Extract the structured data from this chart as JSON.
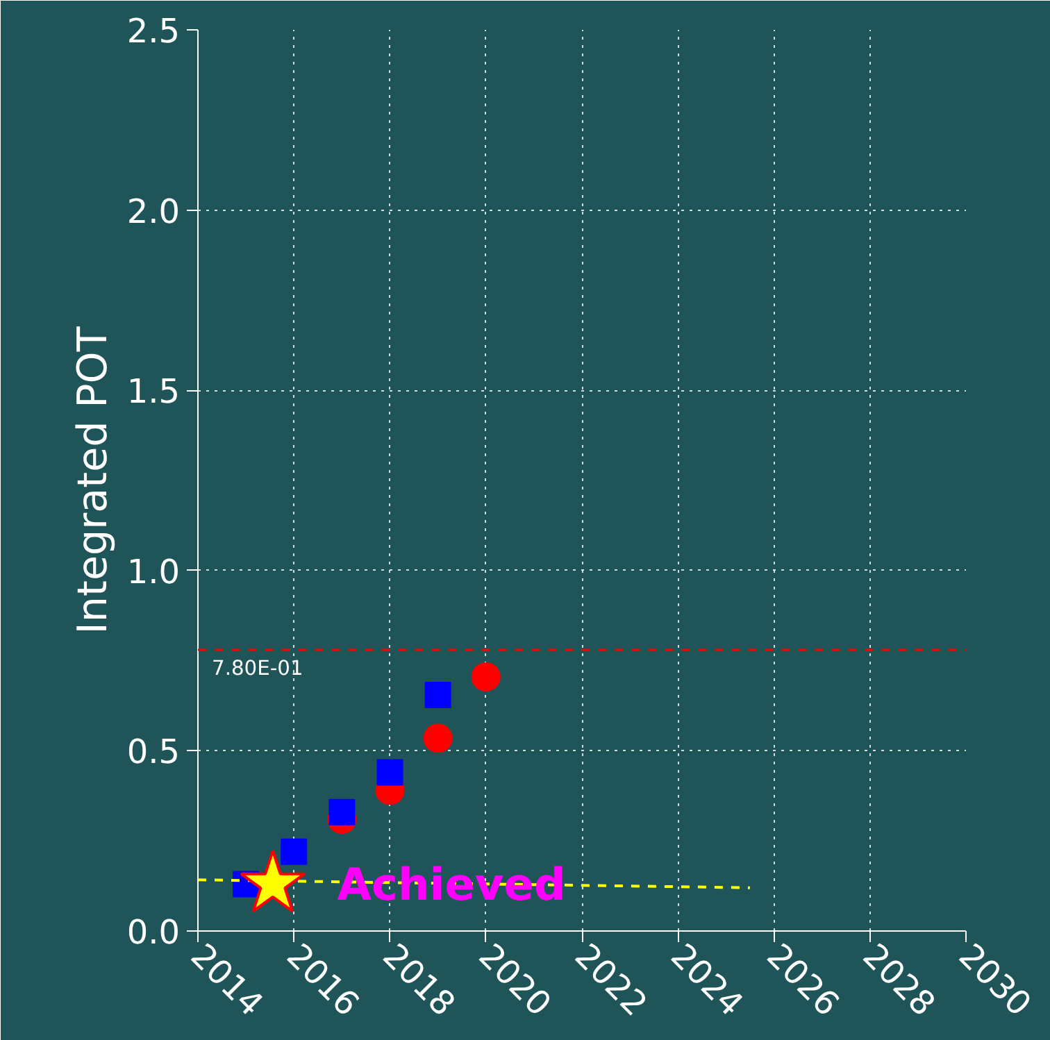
{
  "chart_data": {
    "type": "scatter",
    "ylabel": "Integrated POT",
    "xlim": [
      2014,
      2030
    ],
    "ylim": [
      0,
      2.5
    ],
    "xticks": [
      2014,
      2016,
      2018,
      2020,
      2022,
      2024,
      2026,
      2028,
      2030
    ],
    "yticks": [
      {
        "value": 0,
        "label": "0.0"
      },
      {
        "value": 0.5,
        "label": "0.5"
      },
      {
        "value": 1,
        "label": "1.0"
      },
      {
        "value": 1.5,
        "label": "1.5"
      },
      {
        "value": 2,
        "label": "2.0"
      },
      {
        "value": 2.5,
        "label": "2.5"
      }
    ],
    "grid": true,
    "series": [
      {
        "marker": "circle",
        "color": "#ff0000",
        "x": [
          2017,
          2018,
          2019,
          2020
        ],
        "values": [
          0.31,
          0.39,
          0.535,
          0.705
        ]
      },
      {
        "marker": "square",
        "color": "#0000ff",
        "x": [
          2015,
          2016,
          2017,
          2018,
          2019
        ],
        "values": [
          0.13,
          0.22,
          0.33,
          0.44,
          0.655
        ]
      },
      {
        "type": "line",
        "line_style": "dashed",
        "color": "#ffff00",
        "x": [
          2014,
          2025.5
        ],
        "values": [
          0.142,
          0.12
        ]
      },
      {
        "marker": "star",
        "color": "#ffff00",
        "x": [
          2015.56
        ],
        "values": [
          0.13
        ]
      }
    ],
    "ref_lines": [
      {
        "axis": "y",
        "value": 0.78,
        "label": "7.80E-01",
        "color": "#ff0000",
        "line_style": "dashed"
      }
    ],
    "annotations": [
      {
        "text": "Achieved",
        "x": 2016.9,
        "y": 0.13
      }
    ]
  }
}
